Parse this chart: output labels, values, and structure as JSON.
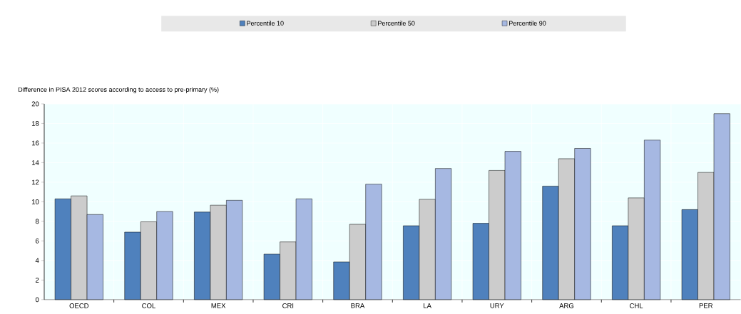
{
  "chart_data": {
    "type": "bar",
    "ylabel": "Difference in PISA 2012 scores according to access to pre-primary (%)",
    "categories": [
      "OECD",
      "COL",
      "MEX",
      "CRI",
      "BRA",
      "LA",
      "URY",
      "ARG",
      "CHL",
      "PER"
    ],
    "series": [
      {
        "name": "Percentile 10",
        "color": "#4f81bd",
        "values": [
          10.3,
          6.9,
          8.95,
          4.65,
          3.85,
          7.55,
          7.8,
          11.6,
          7.55,
          9.2
        ]
      },
      {
        "name": "Percentile 50",
        "color": "#cccccc",
        "values": [
          10.6,
          7.95,
          9.65,
          5.9,
          7.7,
          10.25,
          13.2,
          14.4,
          10.4,
          13.0
        ]
      },
      {
        "name": "Percentile 90",
        "color": "#a6b8e2",
        "values": [
          8.7,
          9.0,
          10.15,
          10.3,
          11.8,
          13.4,
          15.15,
          15.45,
          16.3,
          19.0
        ]
      }
    ],
    "ylim": [
      0,
      20
    ],
    "yticks": [
      0,
      2,
      4,
      6,
      8,
      10,
      12,
      14,
      16,
      18,
      20
    ],
    "grid": true,
    "legend": "top"
  }
}
